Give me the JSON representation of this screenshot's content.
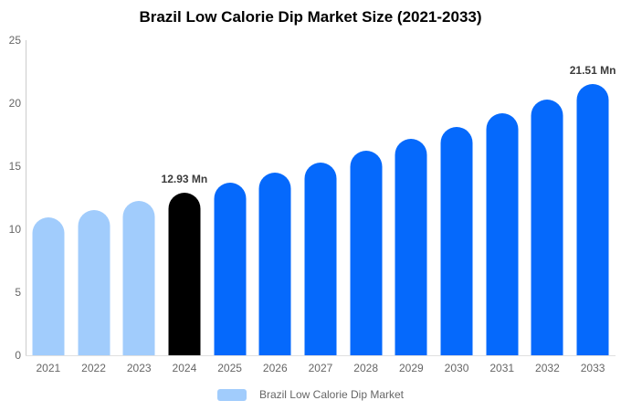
{
  "chart_data": {
    "type": "bar",
    "title": "Brazil Low Calorie Dip Market Size (2021-2033)",
    "categories": [
      "2021",
      "2022",
      "2023",
      "2024",
      "2025",
      "2026",
      "2027",
      "2028",
      "2029",
      "2030",
      "2031",
      "2032",
      "2033"
    ],
    "values": [
      10.91,
      11.55,
      12.22,
      12.93,
      13.68,
      14.48,
      15.32,
      16.21,
      17.15,
      18.15,
      19.21,
      20.32,
      21.51
    ],
    "series_name": "Brazil Low Calorie Dip Market",
    "xlabel": "",
    "ylabel": "",
    "ylim": [
      0,
      25
    ],
    "yticks": [
      0,
      5,
      10,
      15,
      20,
      25
    ],
    "grid": false,
    "legend_position": "bottom",
    "bar_colors": [
      "#A1CCFC",
      "#A1CCFC",
      "#A1CCFC",
      "#000000",
      "#0569FC",
      "#0569FC",
      "#0569FC",
      "#0569FC",
      "#0569FC",
      "#0569FC",
      "#0569FC",
      "#0569FC",
      "#0569FC"
    ],
    "annotations": [
      {
        "category": "2024",
        "text": "12.93 Mn"
      },
      {
        "category": "2033",
        "text": "21.51 Mn"
      }
    ]
  },
  "legend": {
    "label": "Brazil Low Calorie Dip Market",
    "swatch_color": "#A1CCFC"
  },
  "colors": {
    "historical_bar": "#A1CCFC",
    "current_year_bar": "#000000",
    "forecast_bar": "#0569FC",
    "axis_line": "#cccccc",
    "baseline": "#e0e0e0",
    "axis_text": "#666666",
    "annotation_text": "#3b3b3b"
  }
}
